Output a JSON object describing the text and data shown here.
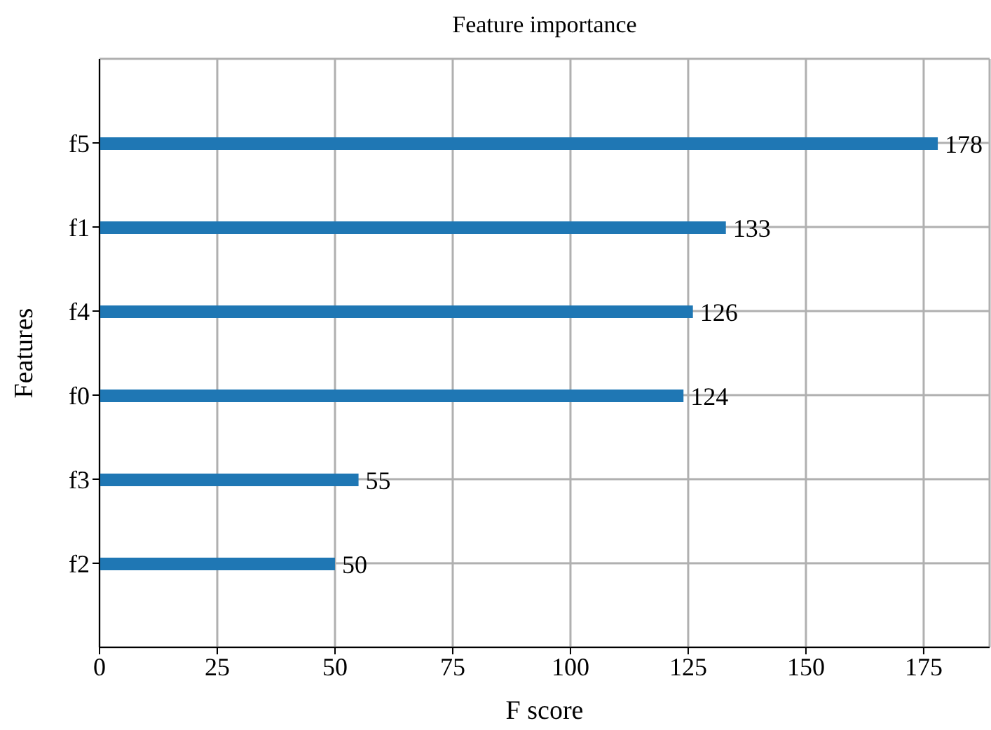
{
  "chart_data": {
    "type": "bar",
    "orientation": "horizontal",
    "title": "Feature importance",
    "xlabel": "F score",
    "ylabel": "Features",
    "categories": [
      "f5",
      "f1",
      "f4",
      "f0",
      "f3",
      "f2"
    ],
    "values": [
      178,
      133,
      126,
      124,
      55,
      50
    ],
    "color": "#1f77b4",
    "data_labels": true,
    "xlim": [
      0,
      189
    ],
    "xticks": [
      0,
      25,
      50,
      75,
      100,
      125,
      150,
      175
    ],
    "grid": true
  }
}
